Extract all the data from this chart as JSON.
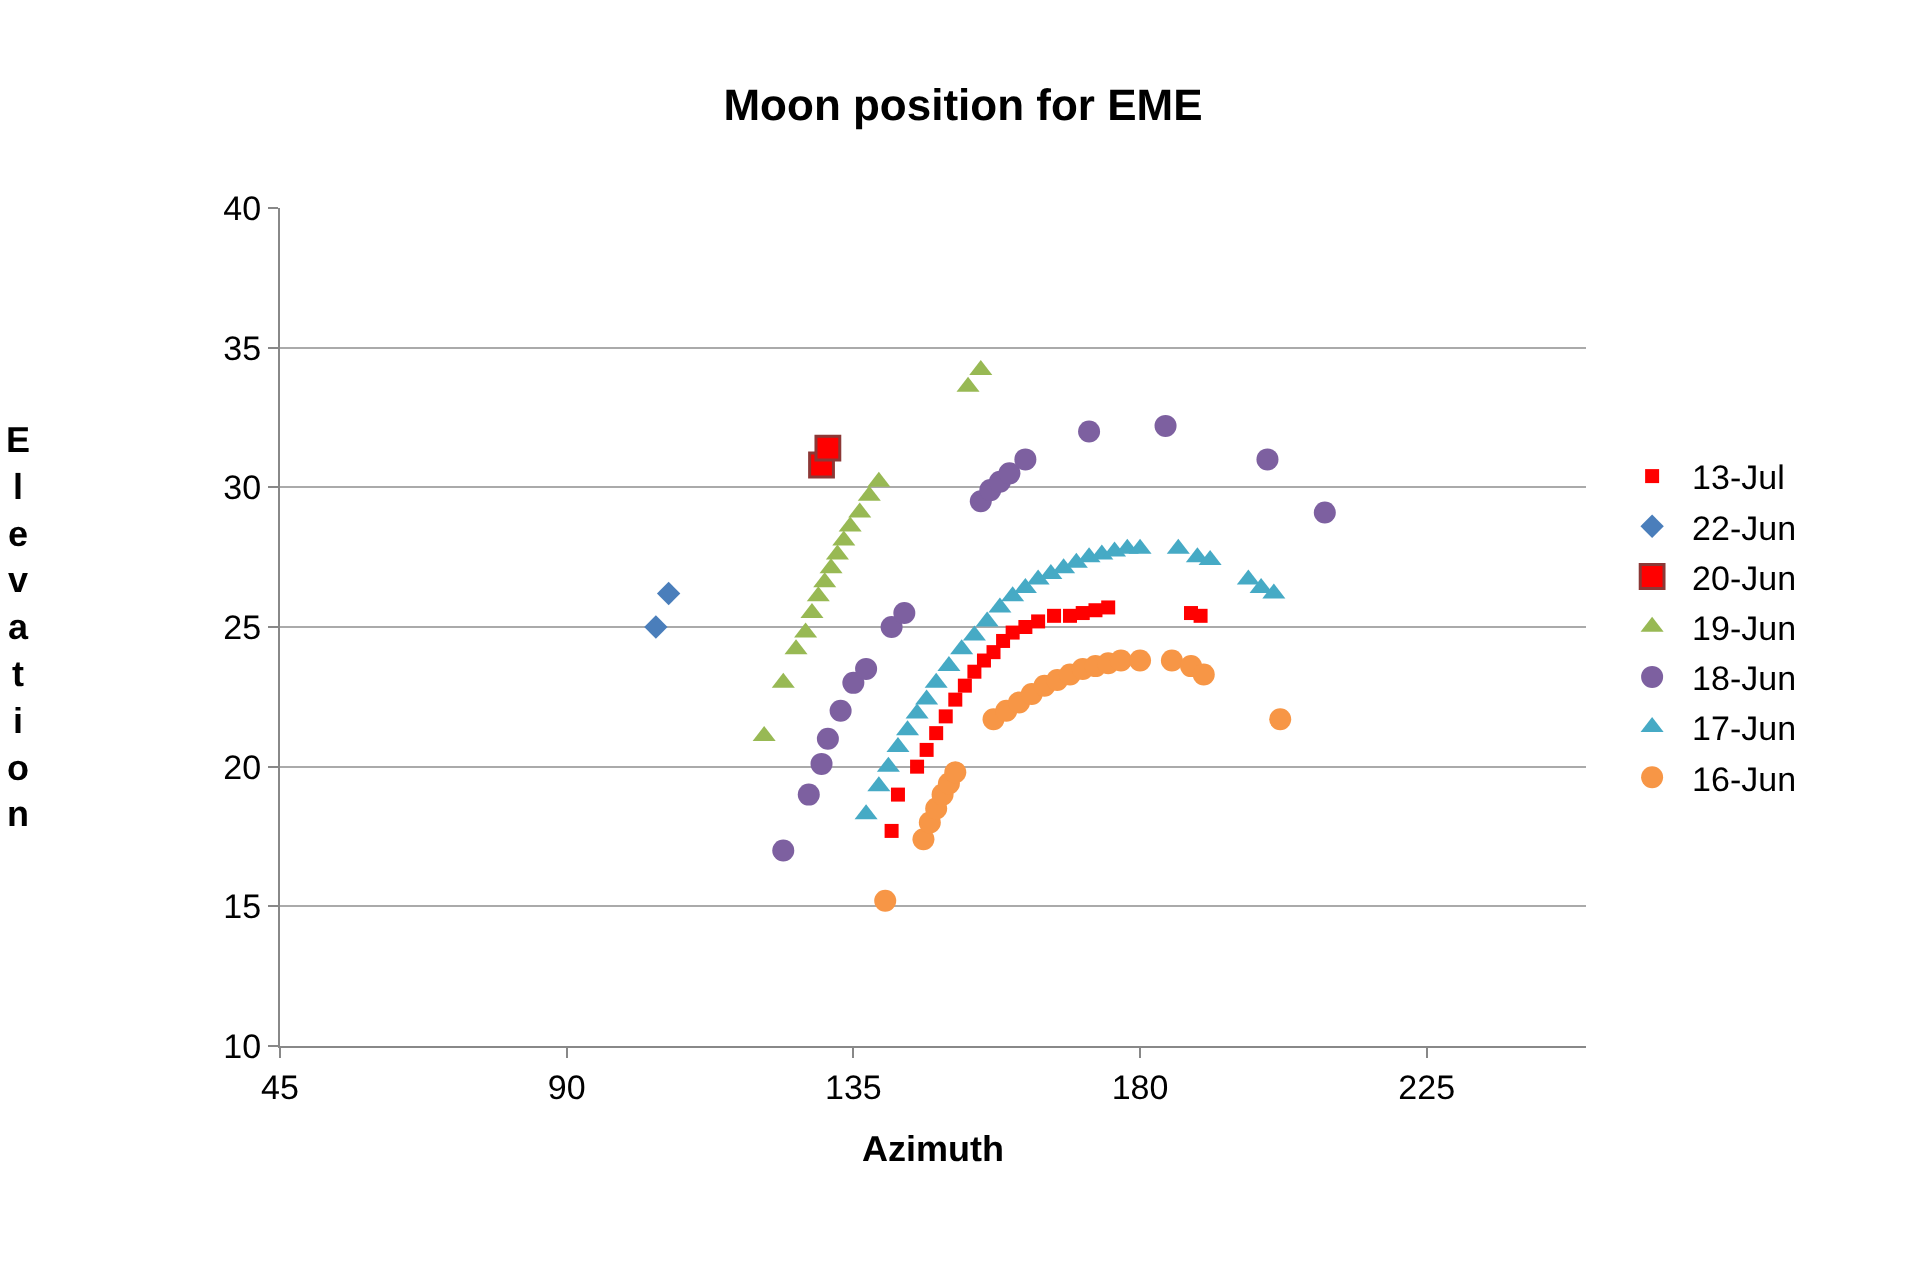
{
  "chart_data": {
    "type": "scatter",
    "title": "Moon position for EME",
    "xlabel": "Azimuth",
    "ylabel": "Elevation",
    "xlim": [
      45,
      250
    ],
    "xticks": [
      45,
      90,
      135,
      180,
      225
    ],
    "ylim": [
      10,
      40
    ],
    "yticks": [
      10,
      15,
      20,
      25,
      30,
      35,
      40
    ],
    "grid": "y",
    "legend": "right",
    "series": [
      {
        "name": "13-Jul",
        "color": "#ff0000",
        "marker": "square",
        "x": [
          141,
          142,
          145,
          146.5,
          148,
          149.5,
          151,
          152.5,
          154,
          155.5,
          157,
          158.5,
          160,
          162,
          164,
          166.5,
          169,
          171,
          173,
          175,
          188,
          189.5
        ],
        "values": [
          17.7,
          19,
          20,
          20.6,
          21.2,
          21.8,
          22.4,
          22.9,
          23.4,
          23.8,
          24.1,
          24.5,
          24.8,
          25,
          25.2,
          25.4,
          25.4,
          25.5,
          25.6,
          25.7,
          25.5,
          25.4
        ]
      },
      {
        "name": "22-Jun",
        "color": "#4a7ebb",
        "marker": "diamond",
        "x": [
          104,
          106
        ],
        "values": [
          25,
          26.2
        ]
      },
      {
        "name": "20-Jun",
        "color": "#ff0000",
        "marker": "square",
        "x": [
          130,
          131
        ],
        "values": [
          30.8,
          31.4
        ]
      },
      {
        "name": "19-Jun",
        "color": "#98b954",
        "marker": "triangle",
        "x": [
          121,
          124,
          126,
          127.5,
          128.5,
          129.5,
          130.5,
          131.5,
          132.5,
          133.5,
          134.5,
          136,
          137.5,
          139,
          153,
          155
        ],
        "values": [
          21.1,
          23,
          24.2,
          24.8,
          25.5,
          26.1,
          26.6,
          27.1,
          27.6,
          28.1,
          28.6,
          29.1,
          29.7,
          30.2,
          33.6,
          34.2
        ]
      },
      {
        "name": "18-Jun",
        "color": "#7d60a0",
        "marker": "circle",
        "x": [
          124,
          128,
          130,
          131,
          133,
          135,
          137,
          141,
          143,
          155,
          156.5,
          158,
          159.5,
          162,
          172,
          184,
          200,
          209
        ],
        "values": [
          17,
          19,
          20.1,
          21,
          22,
          23,
          23.5,
          25,
          25.5,
          29.5,
          29.9,
          30.2,
          30.5,
          31,
          32,
          32.2,
          31,
          29.1
        ]
      },
      {
        "name": "17-Jun",
        "color": "#46aac5",
        "marker": "triangle",
        "x": [
          137,
          139,
          140.5,
          142,
          143.5,
          145,
          146.5,
          148,
          150,
          152,
          154,
          156,
          158,
          160,
          162,
          164,
          166,
          168,
          170,
          172,
          174,
          176,
          178,
          180,
          186,
          189,
          191,
          197,
          199,
          201
        ],
        "values": [
          18.3,
          19.3,
          20,
          20.7,
          21.3,
          21.9,
          22.4,
          23,
          23.6,
          24.2,
          24.7,
          25.2,
          25.7,
          26.1,
          26.4,
          26.7,
          26.9,
          27.1,
          27.3,
          27.5,
          27.6,
          27.7,
          27.8,
          27.8,
          27.8,
          27.5,
          27.4,
          26.7,
          26.4,
          26.2
        ]
      },
      {
        "name": "16-Jun",
        "color": "#f79646",
        "marker": "circle",
        "x": [
          140,
          146,
          147,
          148,
          149,
          150,
          151,
          157,
          159,
          161,
          163,
          165,
          167,
          169,
          171,
          173,
          175,
          177,
          180,
          185,
          188,
          190,
          202
        ],
        "values": [
          15.2,
          17.4,
          18,
          18.5,
          19,
          19.4,
          19.8,
          21.7,
          22,
          22.3,
          22.6,
          22.9,
          23.1,
          23.3,
          23.5,
          23.6,
          23.7,
          23.8,
          23.8,
          23.8,
          23.6,
          23.3,
          21.7
        ]
      }
    ]
  }
}
